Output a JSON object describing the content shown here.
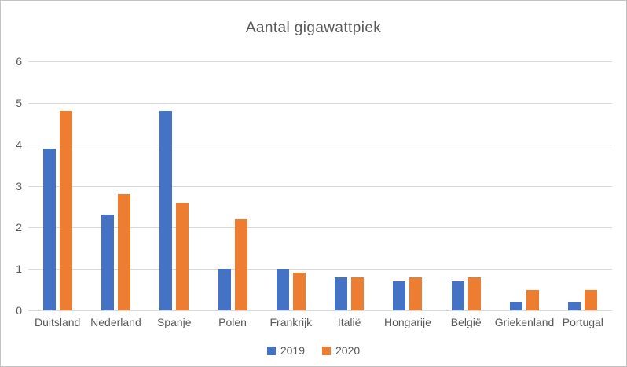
{
  "chart_data": {
    "type": "bar",
    "title": "Aantal gigawattpiek",
    "categories": [
      "Duitsland",
      "Nederland",
      "Spanje",
      "Polen",
      "Frankrijk",
      "Italië",
      "Hongarije",
      "België",
      "Griekenland",
      "Portugal"
    ],
    "series": [
      {
        "name": "2019",
        "color": "#4472C4",
        "values": [
          3.9,
          2.3,
          4.8,
          1.0,
          1.0,
          0.8,
          0.7,
          0.7,
          0.2,
          0.2
        ]
      },
      {
        "name": "2020",
        "color": "#ED7D31",
        "values": [
          4.8,
          2.8,
          2.6,
          2.2,
          0.9,
          0.8,
          0.8,
          0.8,
          0.5,
          0.5
        ]
      }
    ],
    "xlabel": "",
    "ylabel": "",
    "ylim": [
      0,
      6
    ],
    "yticks": [
      0,
      1,
      2,
      3,
      4,
      5,
      6
    ],
    "grid": true,
    "legend_position": "bottom"
  },
  "colors": {
    "series_2019": "#4472C4",
    "series_2020": "#ED7D31",
    "text": "#595959",
    "gridline": "#D9D9D9",
    "chart_border": "#C3C3C3",
    "background": "#FFFFFF"
  }
}
